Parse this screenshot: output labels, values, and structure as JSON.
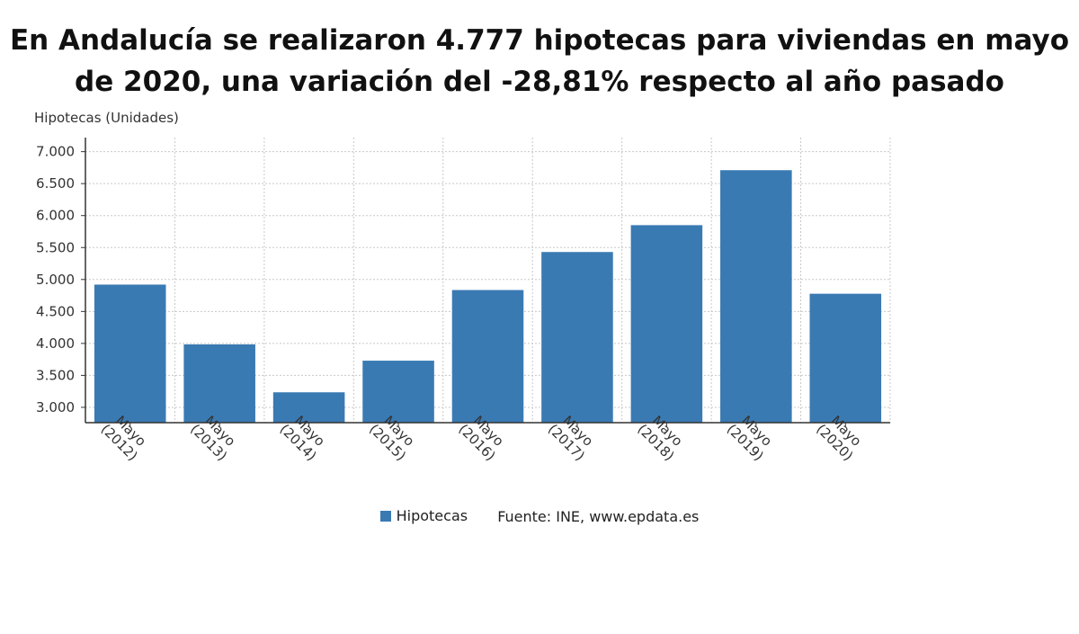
{
  "chart_data": {
    "type": "bar",
    "title": "En Andalucía se realizaron 4.777 hipotecas para viviendas en mayo de 2020, una variación del -28,81% respecto al año pasado",
    "ylabel": "Hipotecas (Unidades)",
    "categories": [
      [
        "Mayo",
        "(2012)"
      ],
      [
        "Mayo",
        "(2013)"
      ],
      [
        "Mayo",
        "(2014)"
      ],
      [
        "Mayo",
        "(2015)"
      ],
      [
        "Mayo",
        "(2016)"
      ],
      [
        "Mayo",
        "(2017)"
      ],
      [
        "Mayo",
        "(2018)"
      ],
      [
        "Mayo",
        "(2019)"
      ],
      [
        "Mayo",
        "(2020)"
      ]
    ],
    "series": [
      {
        "name": "Hipotecas",
        "color": "#3a7ab3",
        "values": [
          4920,
          3985,
          3235,
          3730,
          4835,
          5430,
          5850,
          6710,
          4777
        ]
      }
    ],
    "ylim": [
      2760,
      7220
    ],
    "yticks": [
      3000,
      3500,
      4000,
      4500,
      5000,
      5500,
      6000,
      6500,
      7000
    ],
    "ytick_labels": [
      "3.000",
      "3.500",
      "4.000",
      "4.500",
      "5.000",
      "5.500",
      "6.000",
      "6.500",
      "7.000"
    ],
    "grid": true,
    "legend_position": "bottom"
  },
  "source_label": "Fuente: INE, www.epdata.es"
}
